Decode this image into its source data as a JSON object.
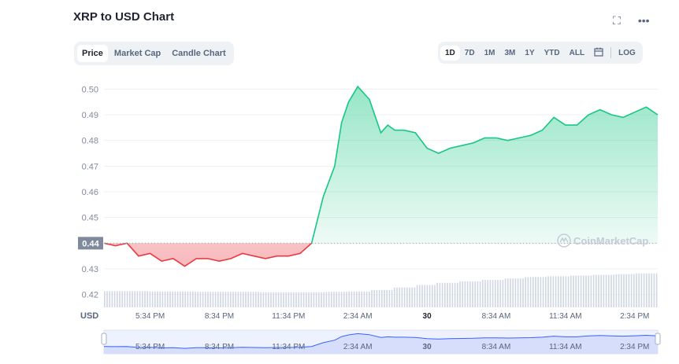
{
  "header": {
    "title": "XRP to USD Chart",
    "fullscreen_icon": "expand-icon",
    "more_icon": "more-icon"
  },
  "tabs": [
    {
      "label": "Price",
      "active": true
    },
    {
      "label": "Market Cap",
      "active": false
    },
    {
      "label": "Candle Chart",
      "active": false
    }
  ],
  "ranges": [
    {
      "label": "1D",
      "active": true
    },
    {
      "label": "7D",
      "active": false
    },
    {
      "label": "1M",
      "active": false
    },
    {
      "label": "3M",
      "active": false
    },
    {
      "label": "1Y",
      "active": false
    },
    {
      "label": "YTD",
      "active": false
    },
    {
      "label": "ALL",
      "active": false
    }
  ],
  "calendar_icon": "calendar-icon",
  "log_label": "LOG",
  "watermark": "CoinMarketCap",
  "colors": {
    "up": "#16c784",
    "down": "#ea3943",
    "volume": "#cfd6e4",
    "navigator": "#3861fb"
  },
  "chart_data": {
    "type": "area",
    "ylim": [
      0.415,
      0.505
    ],
    "yticks": [
      "0.50",
      "0.49",
      "0.48",
      "0.47",
      "0.46",
      "0.45",
      "0.44",
      "0.43",
      "0.42"
    ],
    "ytick_values": [
      0.5,
      0.49,
      0.48,
      0.47,
      0.46,
      0.45,
      0.44,
      0.43,
      0.42
    ],
    "currency_label": "USD",
    "baseline": {
      "value": 0.44,
      "label": "0.44"
    },
    "xticks": [
      "5:34 PM",
      "8:34 PM",
      "11:34 PM",
      "2:34 AM",
      "30",
      "8:34 AM",
      "11:34 AM",
      "2:34 PM"
    ],
    "xtick_hours": [
      2,
      5,
      8,
      11,
      14,
      17,
      20,
      23
    ],
    "xlim_hours": [
      0,
      24
    ],
    "series": [
      {
        "x": [
          0,
          0.5,
          1,
          1.5,
          2,
          2.5,
          3,
          3.5,
          4,
          4.5,
          5,
          5.5,
          6,
          6.5,
          7,
          7.5,
          8,
          8.5,
          9,
          9.5,
          10,
          10.3,
          10.6,
          11,
          11.5,
          12,
          12.3,
          12.6,
          13,
          13.5,
          14,
          14.5,
          15,
          15.5,
          16,
          16.5,
          17,
          17.5,
          18,
          18.5,
          19,
          19.5,
          20,
          20.5,
          21,
          21.5,
          22,
          22.5,
          23,
          23.5,
          24
        ],
        "values": [
          0.44,
          0.439,
          0.44,
          0.435,
          0.436,
          0.433,
          0.434,
          0.431,
          0.434,
          0.434,
          0.433,
          0.434,
          0.436,
          0.435,
          0.434,
          0.435,
          0.435,
          0.436,
          0.44,
          0.458,
          0.47,
          0.487,
          0.495,
          0.501,
          0.496,
          0.483,
          0.486,
          0.484,
          0.484,
          0.483,
          0.477,
          0.475,
          0.477,
          0.478,
          0.479,
          0.481,
          0.481,
          0.48,
          0.481,
          0.482,
          0.484,
          0.489,
          0.486,
          0.486,
          0.49,
          0.492,
          0.49,
          0.489,
          0.491,
          0.493,
          0.49
        ]
      }
    ],
    "volume_relative": [
      0.45,
      0.45,
      0.44,
      0.44,
      0.43,
      0.43,
      0.43,
      0.42,
      0.42,
      0.42,
      0.43,
      0.44,
      0.48,
      0.55,
      0.62,
      0.68,
      0.72,
      0.76,
      0.8,
      0.84,
      0.86,
      0.88,
      0.9,
      0.92,
      0.94
    ]
  }
}
